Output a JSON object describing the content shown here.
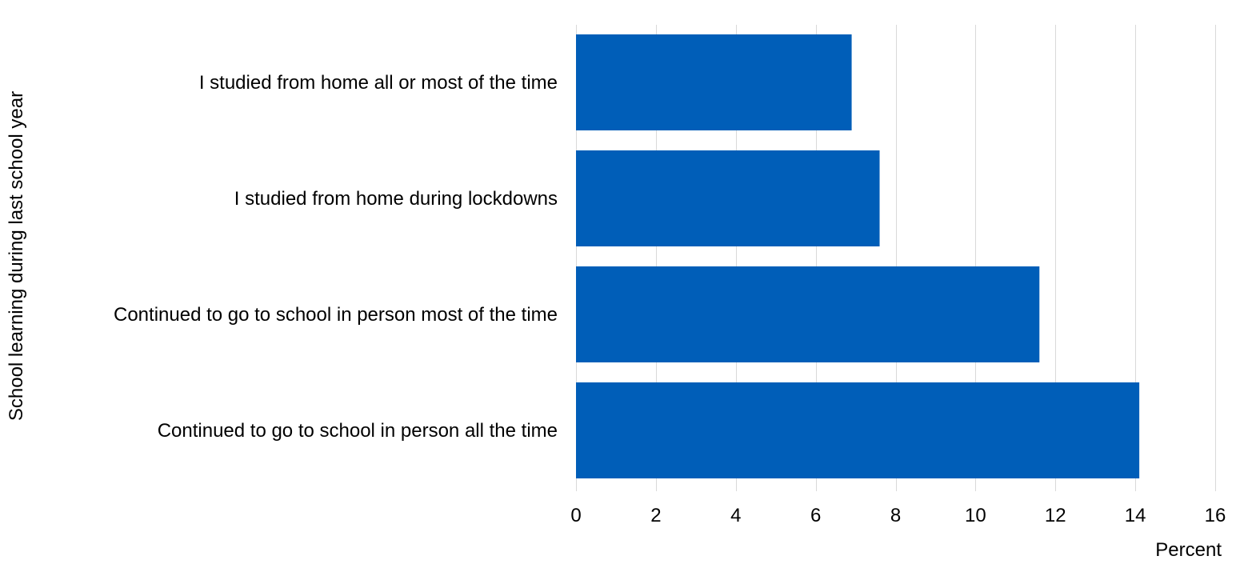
{
  "chart_data": {
    "type": "bar",
    "orientation": "horizontal",
    "title": "",
    "categories": [
      "I studied from home all or most of the time",
      "I studied from home during lockdowns",
      "Continued to go to school in person most of the time",
      "Continued to go to school in person all the time"
    ],
    "values": [
      6.9,
      7.6,
      11.6,
      14.1
    ],
    "xlabel": "Percent",
    "ylabel": "School learning during last school year",
    "xlim": [
      0,
      16
    ],
    "xticks": [
      "0",
      "2",
      "4",
      "6",
      "8",
      "10",
      "12",
      "14",
      "16"
    ],
    "grid": true,
    "legend": "none",
    "bar_color": "#005EB8"
  }
}
